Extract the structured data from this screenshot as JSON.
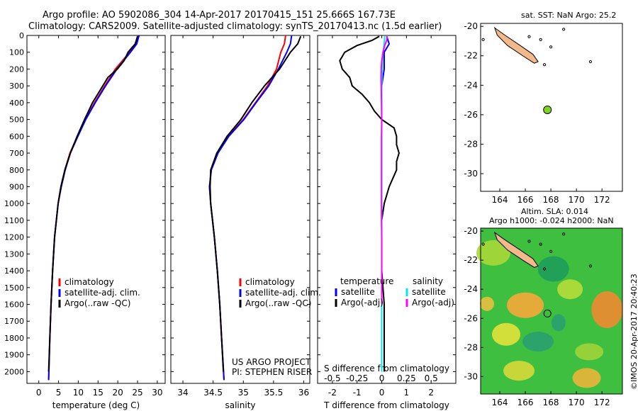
{
  "header": {
    "line1": "Argo profile: AO 5902086_304 14-Apr-2017 20170415_151 25.666S 167.73E",
    "line2": "Climatology: CARS2009. Satellite-adjusted climatology: synTS_20170413.nc (1.5d earlier)"
  },
  "credit": {
    "line1": "US ARGO PROJECT",
    "line2": "PI: STEPHEN RISER"
  },
  "watermark": "©IMOS 20-Apr-2017 20:40:23",
  "colors": {
    "climatology": "#ff0000",
    "satellite": "#0000ff",
    "argo": "#000000",
    "satellite_salinity": "#00e5ff",
    "argo_salinity_adj": "#ff00ff",
    "land": "#f4b98a",
    "float_marker": "#7ed320"
  },
  "legends": {
    "temp": [
      "climatology",
      "satellite-adj. clim.",
      "Argo(..raw -QC)"
    ],
    "sal": [
      "climatology",
      "satellite-adj. clim.",
      "Argo(..raw -QC)"
    ],
    "diff_headers": [
      "temperature",
      "salinity"
    ],
    "diff_temp": [
      "satellite",
      "Argo(-adj)"
    ],
    "diff_sal": [
      "satellite",
      "Argo(-adj)"
    ]
  },
  "map_sst": {
    "title": "sat. SST: NaN Argo: 25.2",
    "x_ticks": [
      "164",
      "166",
      "168",
      "170",
      "172"
    ],
    "y_ticks": [
      "-20",
      "-22",
      "-24",
      "-26",
      "-28",
      "-30"
    ],
    "float_lon": 167.73,
    "float_lat": -25.666
  },
  "map_sla": {
    "title1": "Altim. SLA: 0.014",
    "title2": "Argo h1000: -0.024 h2000: NaN",
    "x_ticks": [
      "164",
      "166",
      "168",
      "170",
      "172"
    ],
    "y_ticks": [
      "-20",
      "-22",
      "-24",
      "-26",
      "-28",
      "-30"
    ]
  },
  "chart_data": [
    {
      "type": "line",
      "xlabel": "temperature (deg C)",
      "xlim": [
        -3,
        32
      ],
      "ylim": [
        2070,
        0
      ],
      "x_ticks": [
        0,
        5,
        10,
        15,
        20,
        25,
        30
      ],
      "y_ticks": [
        0,
        100,
        200,
        300,
        400,
        500,
        600,
        700,
        800,
        900,
        1000,
        1100,
        1200,
        1300,
        1400,
        1500,
        1600,
        1700,
        1800,
        1900,
        2000
      ],
      "series": [
        {
          "name": "climatology",
          "color": "#ff0000",
          "pressure": [
            0,
            50,
            100,
            200,
            300,
            400,
            500,
            600,
            700,
            800,
            900,
            1000,
            1200,
            1400,
            1600,
            1800,
            2050
          ],
          "values": [
            25.2,
            24.6,
            23.0,
            19.4,
            16.7,
            14.1,
            11.8,
            9.8,
            7.9,
            6.6,
            5.6,
            4.9,
            4.0,
            3.5,
            3.1,
            2.8,
            2.5
          ]
        },
        {
          "name": "satellite-adj. clim.",
          "color": "#0000ff",
          "pressure": [
            0,
            50,
            100,
            200,
            300,
            400,
            500,
            600,
            700,
            800,
            900,
            1000,
            1200,
            1400,
            1600,
            1800,
            2050
          ],
          "values": [
            25.4,
            24.8,
            23.2,
            19.8,
            16.9,
            14.3,
            11.9,
            9.9,
            8.0,
            6.7,
            5.7,
            4.9,
            4.0,
            3.5,
            3.1,
            2.8,
            2.5
          ]
        },
        {
          "name": "Argo(..raw -QC)",
          "color": "#000000",
          "pressure": [
            5,
            50,
            100,
            150,
            200,
            250,
            300,
            400,
            500,
            600,
            700,
            800,
            900,
            1000,
            1200,
            1400,
            1600,
            1800,
            2000
          ],
          "values": [
            25.0,
            24.4,
            22.6,
            21.6,
            19.9,
            17.5,
            16.2,
            13.6,
            11.6,
            9.7,
            8.0,
            6.6,
            5.6,
            4.9,
            4.0,
            3.5,
            3.1,
            2.8,
            2.5
          ]
        }
      ]
    },
    {
      "type": "line",
      "xlabel": "salinity",
      "xlim": [
        33.8,
        36.1
      ],
      "ylim": [
        2070,
        0
      ],
      "x_ticks": [
        34,
        34.5,
        35,
        35.5,
        36
      ],
      "series": [
        {
          "name": "climatology",
          "color": "#ff0000",
          "pressure": [
            0,
            50,
            100,
            200,
            300,
            400,
            500,
            600,
            700,
            800,
            900,
            1000,
            1200,
            1400,
            1600,
            1800,
            2050
          ],
          "values": [
            35.7,
            35.68,
            35.62,
            35.55,
            35.4,
            35.2,
            35.0,
            34.75,
            34.58,
            34.47,
            34.44,
            34.46,
            34.52,
            34.57,
            34.61,
            34.64,
            34.68
          ]
        },
        {
          "name": "satellite-adj. clim.",
          "color": "#0000ff",
          "pressure": [
            0,
            50,
            100,
            200,
            300,
            400,
            500,
            600,
            700,
            800,
            900,
            1000,
            1200,
            1400,
            1600,
            1800,
            2050
          ],
          "values": [
            35.8,
            35.78,
            35.72,
            35.58,
            35.42,
            35.21,
            35.01,
            34.76,
            34.58,
            34.47,
            34.44,
            34.46,
            34.52,
            34.57,
            34.61,
            34.64,
            34.68
          ]
        },
        {
          "name": "Argo(..raw -QC)",
          "color": "#000000",
          "pressure": [
            5,
            50,
            100,
            200,
            300,
            400,
            500,
            600,
            700,
            800,
            900,
            1000,
            1200,
            1400,
            1600,
            1800,
            2000
          ],
          "values": [
            35.95,
            35.9,
            35.78,
            35.6,
            35.35,
            35.14,
            34.96,
            34.73,
            34.56,
            34.46,
            34.45,
            34.46,
            34.52,
            34.57,
            34.61,
            34.64,
            34.67
          ]
        }
      ]
    },
    {
      "type": "line",
      "xlabel": "T difference from climatology",
      "xlabel_top": "S difference from climatology",
      "xlim": [
        -2.6,
        3.0
      ],
      "ylim": [
        2070,
        0
      ],
      "x_ticks": [
        -2,
        -1,
        0,
        1,
        2
      ],
      "x_ticks_top": [
        "-0.5",
        "-0.25",
        "0",
        "0.25",
        "0.5"
      ],
      "series": [
        {
          "name": "temperature satellite",
          "color": "#0000ff",
          "pressure": [
            5,
            50,
            100,
            200,
            300,
            400,
            600,
            800,
            1000,
            1200,
            1500,
            1800,
            2000
          ],
          "values": [
            0.2,
            0.3,
            0.1,
            0.1,
            0.0,
            0.0,
            0.0,
            0.0,
            0.0,
            0.0,
            0.0,
            0.0,
            0.0
          ]
        },
        {
          "name": "temperature Argo(-adj)",
          "color": "#000000",
          "pressure": [
            5,
            30,
            60,
            100,
            150,
            200,
            250,
            300,
            350,
            400,
            450,
            500,
            550,
            600,
            650,
            700,
            750,
            800,
            900,
            1000,
            1100,
            1200,
            1400,
            1600,
            1800,
            2000
          ],
          "values": [
            -0.1,
            -0.4,
            -1.0,
            -1.5,
            -1.7,
            -1.6,
            -1.3,
            -1.2,
            -0.8,
            -0.5,
            -0.3,
            0.0,
            0.5,
            0.6,
            0.6,
            0.7,
            0.6,
            0.6,
            0.3,
            0.1,
            0.0,
            0.0,
            0.0,
            0.1,
            0.1,
            0.1
          ]
        },
        {
          "name": "salinity satellite",
          "color": "#00e5ff",
          "pressure": [
            5,
            50,
            100,
            200,
            300,
            400,
            600,
            800,
            1000,
            1200,
            1500,
            1800,
            2000
          ],
          "values": [
            0.12,
            0.1,
            0.05,
            0.02,
            0.0,
            0.0,
            0.0,
            0.0,
            0.0,
            0.0,
            0.0,
            0.0,
            0.0
          ]
        },
        {
          "name": "salinity Argo(-adj)",
          "color": "#ff00ff",
          "pressure": [
            5,
            30,
            60,
            100,
            150,
            200,
            250,
            300,
            400,
            500,
            600,
            800,
            1000,
            1100,
            1200,
            1400,
            1600
          ],
          "values": [
            0.22,
            0.2,
            0.12,
            0.05,
            0.0,
            -0.02,
            -0.03,
            -0.02,
            -0.01,
            0.0,
            -0.01,
            -0.01,
            -0.01,
            -0.01,
            0.0,
            0.0,
            0.0
          ]
        }
      ]
    }
  ]
}
